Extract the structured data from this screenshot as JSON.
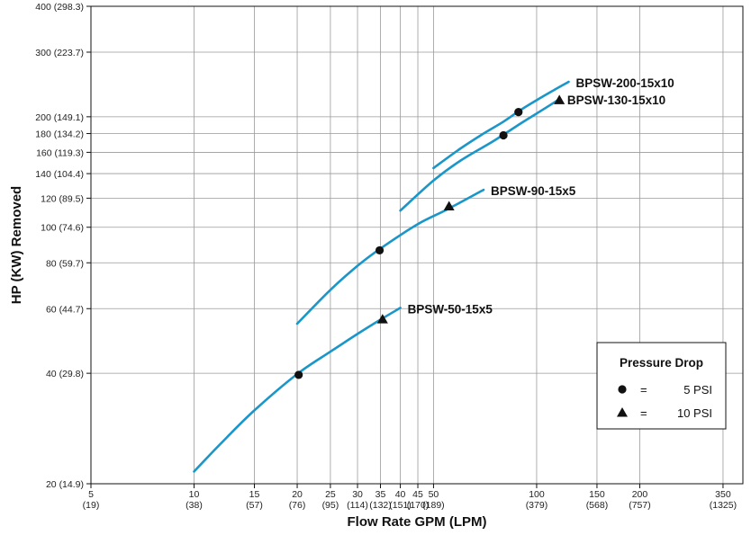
{
  "chart_data": {
    "type": "line",
    "xscale": "log",
    "yscale": "log",
    "xlim": [
      5,
      400
    ],
    "ylim": [
      20,
      400
    ],
    "xlabel": "Flow Rate GPM (LPM)",
    "ylabel": "HP (KW) Removed",
    "grid": true,
    "line_color": "#1a96c8",
    "x_ticks": [
      {
        "value": 5,
        "top": "5",
        "bottom": "(19)"
      },
      {
        "value": 10,
        "top": "10",
        "bottom": "(38)"
      },
      {
        "value": 15,
        "top": "15",
        "bottom": "(57)"
      },
      {
        "value": 20,
        "top": "20",
        "bottom": "(76)"
      },
      {
        "value": 25,
        "top": "25",
        "bottom": "(95)"
      },
      {
        "value": 30,
        "top": "30",
        "bottom": "(114)"
      },
      {
        "value": 35,
        "top": "35",
        "bottom": "(132)"
      },
      {
        "value": 40,
        "top": "40",
        "bottom": "(151)"
      },
      {
        "value": 45,
        "top": "45",
        "bottom": "(170)"
      },
      {
        "value": 50,
        "top": "50",
        "bottom": "(189)"
      },
      {
        "value": 100,
        "top": "100",
        "bottom": "(379)"
      },
      {
        "value": 150,
        "top": "150",
        "bottom": "(568)"
      },
      {
        "value": 200,
        "top": "200",
        "bottom": "(757)"
      },
      {
        "value": 350,
        "top": "350",
        "bottom": "(1325)"
      }
    ],
    "y_ticks": [
      {
        "value": 20,
        "label": "20 (14.9)"
      },
      {
        "value": 40,
        "label": "40 (29.8)"
      },
      {
        "value": 60,
        "label": "60 (44.7)"
      },
      {
        "value": 80,
        "label": "80 (59.7)"
      },
      {
        "value": 100,
        "label": "100 (74.6)"
      },
      {
        "value": 120,
        "label": "120 (89.5)"
      },
      {
        "value": 140,
        "label": "140 (104.4)"
      },
      {
        "value": 160,
        "label": "160 (119.3)"
      },
      {
        "value": 180,
        "label": "180 (134.2)"
      },
      {
        "value": 200,
        "label": "200 (149.1)"
      },
      {
        "value": 300,
        "label": "300 (223.7)"
      },
      {
        "value": 400,
        "label": "400 (298.3)"
      }
    ],
    "series": [
      {
        "name": "BPSW-50-15x5",
        "points": [
          [
            10,
            21.6
          ],
          [
            12,
            25.8
          ],
          [
            15,
            31.7
          ],
          [
            20,
            39.8
          ],
          [
            25,
            45.8
          ],
          [
            30,
            51.2
          ],
          [
            35,
            56.0
          ],
          [
            40,
            60.3
          ]
        ],
        "markers": [
          {
            "x": 20.2,
            "y": 39.6,
            "shape": "circle"
          },
          {
            "x": 35.5,
            "y": 56.1,
            "shape": "triangle"
          }
        ]
      },
      {
        "name": "BPSW-90-15x5",
        "points": [
          [
            20,
            54.6
          ],
          [
            25,
            67.5
          ],
          [
            30,
            78.5
          ],
          [
            35,
            87.5
          ],
          [
            45,
            102.0
          ],
          [
            55,
            112.0
          ],
          [
            70,
            126.5
          ]
        ],
        "markers": [
          {
            "x": 34.8,
            "y": 86.5,
            "shape": "circle"
          },
          {
            "x": 55.5,
            "y": 114.0,
            "shape": "triangle"
          }
        ]
      },
      {
        "name": "BPSW-130-15x10",
        "points": [
          [
            40,
            111.0
          ],
          [
            50,
            134.0
          ],
          [
            60,
            152.0
          ],
          [
            75,
            172.0
          ],
          [
            90,
            192.0
          ],
          [
            105,
            210.0
          ],
          [
            117,
            224.0
          ]
        ],
        "markers": [
          {
            "x": 80.0,
            "y": 178.0,
            "shape": "circle"
          },
          {
            "x": 116.5,
            "y": 222.0,
            "shape": "triangle"
          }
        ]
      },
      {
        "name": "BPSW-200-15x10",
        "points": [
          [
            50,
            145.0
          ],
          [
            60,
            164.0
          ],
          [
            70,
            180.0
          ],
          [
            80,
            194.0
          ],
          [
            90,
            209.0
          ],
          [
            100,
            222.0
          ],
          [
            112,
            236.0
          ],
          [
            124,
            249.0
          ]
        ],
        "markers": [
          {
            "x": 88.5,
            "y": 206.0,
            "shape": "circle"
          }
        ]
      }
    ],
    "legend": {
      "title": "Pressure Drop",
      "placement": "bottom-right",
      "items": [
        {
          "shape": "circle",
          "eq": "=",
          "label": "5 PSI"
        },
        {
          "shape": "triangle",
          "eq": "=",
          "label": "10 PSI"
        }
      ]
    }
  }
}
